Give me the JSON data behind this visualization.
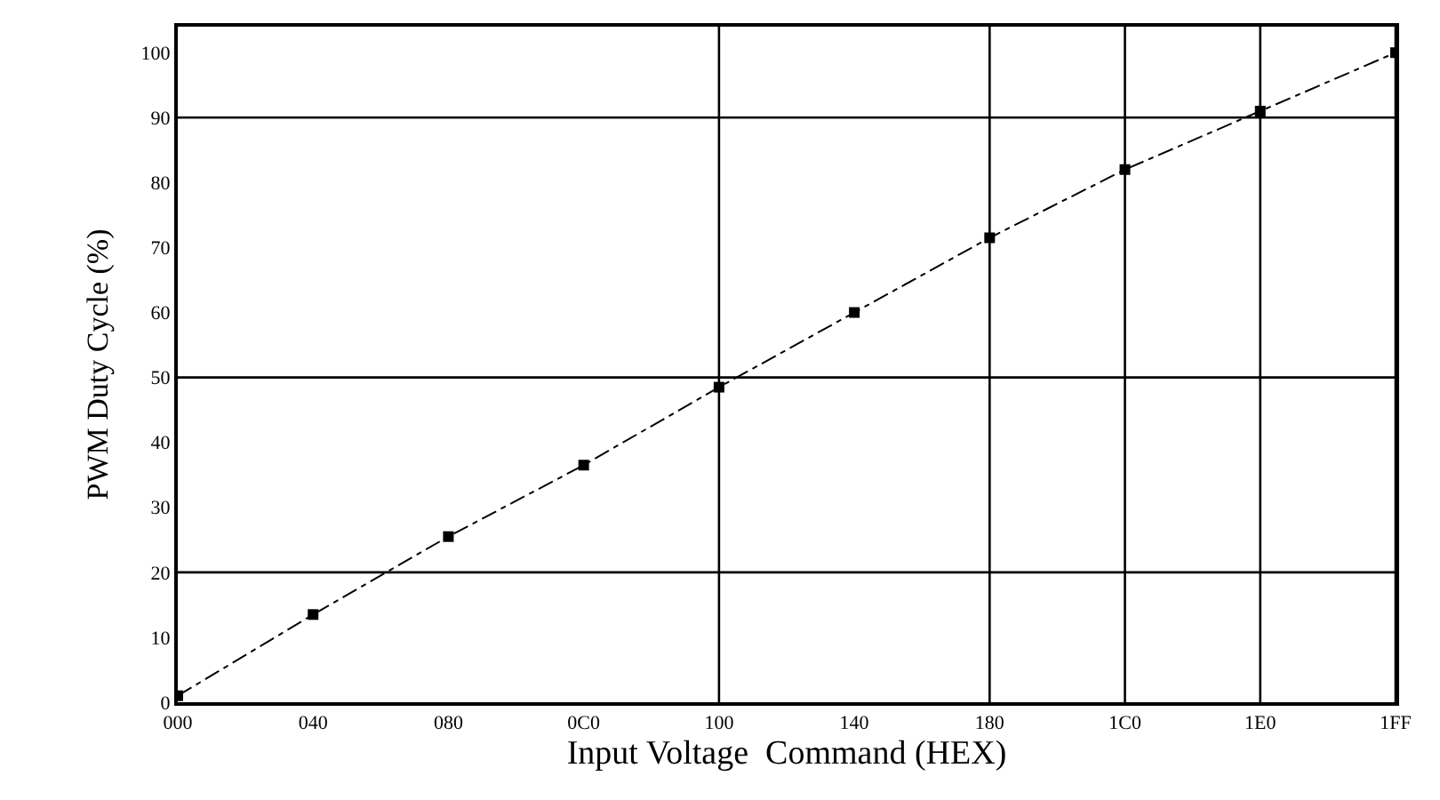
{
  "chart_data": {
    "type": "line",
    "xlabel": "Input Voltage  Command (HEX)",
    "ylabel": "PWM Duty Cycle (%)",
    "categories": [
      "000",
      "040",
      "080",
      "0C0",
      "100",
      "140",
      "180",
      "1C0",
      "1E0",
      "1FF"
    ],
    "series": [
      {
        "color": "#000000",
        "values": [
          1,
          13.5,
          25.5,
          36.5,
          48.5,
          60,
          71.5,
          82,
          91,
          100
        ]
      }
    ],
    "ylim": [
      0,
      104
    ],
    "yticks": [
      0,
      10,
      20,
      30,
      40,
      50,
      60,
      70,
      80,
      90,
      100
    ],
    "marker": "square",
    "line_style": "dashed",
    "legend": false,
    "grid": false,
    "ref_lines": [
      {
        "axis": "y",
        "value": 20,
        "color": "#000000"
      },
      {
        "axis": "y",
        "value": 50,
        "color": "#000000"
      },
      {
        "axis": "y",
        "value": 90,
        "color": "#000000"
      },
      {
        "axis": "x",
        "value": "100",
        "color": "#000000"
      },
      {
        "axis": "x",
        "value": "180",
        "color": "#000000"
      },
      {
        "axis": "x",
        "value": "1C0",
        "color": "#000000"
      },
      {
        "axis": "x",
        "value": "1E0",
        "color": "#000000"
      },
      {
        "axis": "x",
        "value": "1FF",
        "color": "#000000"
      }
    ]
  }
}
